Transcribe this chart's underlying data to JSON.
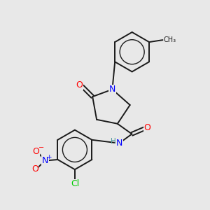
{
  "bg_color": "#e8e8e8",
  "bond_color": "#1a1a1a",
  "atom_colors": {
    "N": "#0000ff",
    "O": "#ff0000",
    "Cl": "#00cc00",
    "H": "#4d9999",
    "C": "#1a1a1a"
  },
  "figsize": [
    3.0,
    3.0
  ],
  "dpi": 100
}
